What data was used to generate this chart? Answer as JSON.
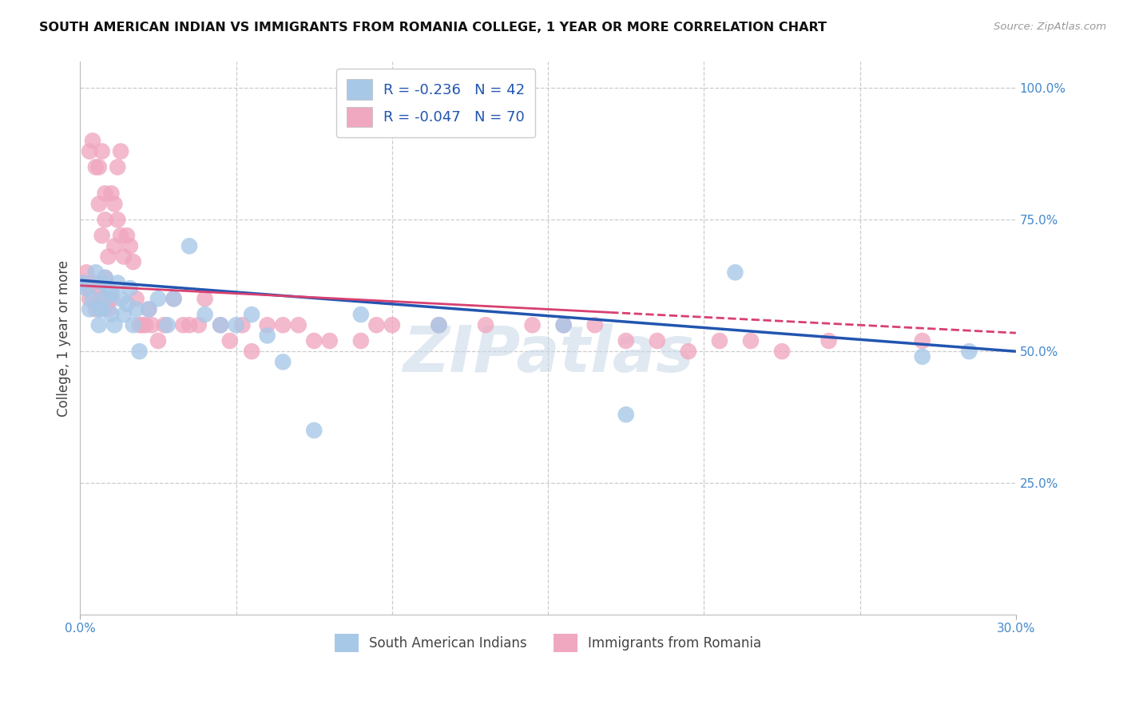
{
  "title": "SOUTH AMERICAN INDIAN VS IMMIGRANTS FROM ROMANIA COLLEGE, 1 YEAR OR MORE CORRELATION CHART",
  "source": "Source: ZipAtlas.com",
  "ylabel": "College, 1 year or more",
  "xmin": 0.0,
  "xmax": 0.3,
  "ymin": 0.0,
  "ymax": 1.05,
  "legend_R_blue": "-0.236",
  "legend_N_blue": "42",
  "legend_R_pink": "-0.047",
  "legend_N_pink": "70",
  "blue_color": "#a8c8e8",
  "pink_color": "#f0a8c0",
  "blue_line_color": "#2255b0",
  "pink_line_color": "#d84070",
  "watermark": "ZIPatlas",
  "blue_x": [
    0.001,
    0.002,
    0.003,
    0.004,
    0.005,
    0.006,
    0.007,
    0.007,
    0.008,
    0.009,
    0.01,
    0.011,
    0.012,
    0.013,
    0.014,
    0.015,
    0.016,
    0.017,
    0.018,
    0.019,
    0.022,
    0.025,
    0.028,
    0.03,
    0.035,
    0.04,
    0.045,
    0.05,
    0.055,
    0.06,
    0.065,
    0.075,
    0.09,
    0.115,
    0.155,
    0.175,
    0.21,
    0.27,
    0.285,
    0.006,
    0.008,
    0.01
  ],
  "blue_y": [
    0.63,
    0.62,
    0.58,
    0.6,
    0.65,
    0.55,
    0.63,
    0.58,
    0.6,
    0.62,
    0.57,
    0.55,
    0.63,
    0.6,
    0.57,
    0.59,
    0.62,
    0.55,
    0.58,
    0.5,
    0.58,
    0.6,
    0.55,
    0.6,
    0.7,
    0.57,
    0.55,
    0.55,
    0.57,
    0.53,
    0.48,
    0.35,
    0.57,
    0.55,
    0.55,
    0.38,
    0.65,
    0.49,
    0.5,
    0.58,
    0.64,
    0.61
  ],
  "pink_x": [
    0.001,
    0.002,
    0.002,
    0.003,
    0.003,
    0.004,
    0.004,
    0.005,
    0.005,
    0.006,
    0.006,
    0.006,
    0.007,
    0.007,
    0.007,
    0.008,
    0.008,
    0.008,
    0.009,
    0.009,
    0.01,
    0.01,
    0.011,
    0.011,
    0.012,
    0.012,
    0.013,
    0.013,
    0.014,
    0.015,
    0.016,
    0.017,
    0.018,
    0.019,
    0.02,
    0.021,
    0.022,
    0.023,
    0.025,
    0.027,
    0.03,
    0.033,
    0.035,
    0.038,
    0.04,
    0.045,
    0.048,
    0.052,
    0.055,
    0.06,
    0.065,
    0.07,
    0.075,
    0.08,
    0.09,
    0.095,
    0.1,
    0.115,
    0.13,
    0.145,
    0.155,
    0.165,
    0.175,
    0.185,
    0.195,
    0.205,
    0.215,
    0.225,
    0.24,
    0.27
  ],
  "pink_y": [
    0.63,
    0.65,
    0.62,
    0.6,
    0.88,
    0.63,
    0.9,
    0.58,
    0.85,
    0.62,
    0.78,
    0.85,
    0.6,
    0.72,
    0.88,
    0.64,
    0.75,
    0.8,
    0.58,
    0.68,
    0.6,
    0.8,
    0.78,
    0.7,
    0.85,
    0.75,
    0.88,
    0.72,
    0.68,
    0.72,
    0.7,
    0.67,
    0.6,
    0.55,
    0.55,
    0.55,
    0.58,
    0.55,
    0.52,
    0.55,
    0.6,
    0.55,
    0.55,
    0.55,
    0.6,
    0.55,
    0.52,
    0.55,
    0.5,
    0.55,
    0.55,
    0.55,
    0.52,
    0.52,
    0.52,
    0.55,
    0.55,
    0.55,
    0.55,
    0.55,
    0.55,
    0.55,
    0.52,
    0.52,
    0.5,
    0.52,
    0.52,
    0.5,
    0.52,
    0.52
  ]
}
